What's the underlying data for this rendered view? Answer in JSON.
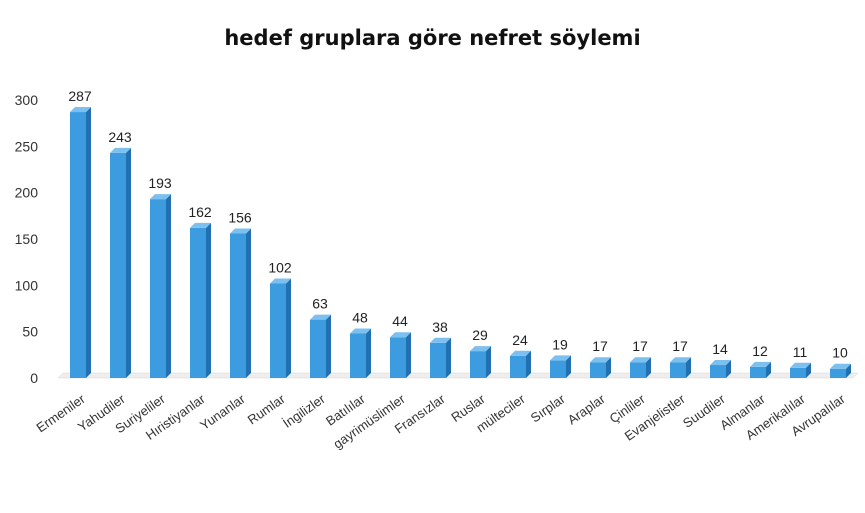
{
  "chart_data": {
    "type": "bar",
    "title": "hedef gruplara göre nefret söylemi",
    "xlabel": "",
    "ylabel": "",
    "ylim": [
      0,
      300
    ],
    "yticks": [
      0,
      50,
      100,
      150,
      200,
      250,
      300
    ],
    "grid": false,
    "legend": "none",
    "style": "3d-column",
    "bar_color": "#3d9be0",
    "bar_side_color": "#2070b2",
    "bar_top_color": "#7cc0f0",
    "categories": [
      "Ermeniler",
      "Yahudiler",
      "Suriyeliler",
      "Hıristiyanlar",
      "Yunanlar",
      "Rumlar",
      "İngilizler",
      "Batılılar",
      "gayrimüslimler",
      "Fransızlar",
      "Ruslar",
      "mülteciler",
      "Sırplar",
      "Araplar",
      "Çinliler",
      "Evanjelistler",
      "Suudiler",
      "Almanlar",
      "Amerikalılar",
      "Avrupalılar"
    ],
    "values": [
      287,
      243,
      193,
      162,
      156,
      102,
      63,
      48,
      44,
      38,
      29,
      24,
      19,
      17,
      17,
      17,
      14,
      12,
      11,
      10
    ]
  }
}
